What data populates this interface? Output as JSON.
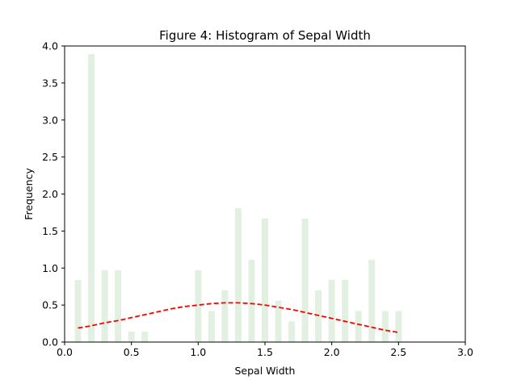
{
  "chart_data": {
    "type": "bar",
    "title": "Figure 4: Histogram of Sepal Width",
    "xlabel": "Sepal Width",
    "ylabel": "Frequency",
    "xlim": [
      0.0,
      3.0
    ],
    "ylim": [
      0.0,
      4.0
    ],
    "xticks": [
      "0.0",
      "0.5",
      "1.0",
      "1.5",
      "2.0",
      "2.5",
      "3.0"
    ],
    "yticks": [
      "0.0",
      "0.5",
      "1.0",
      "1.5",
      "2.0",
      "2.5",
      "3.0",
      "3.5",
      "4.0"
    ],
    "grid": false,
    "bar_width": 0.048,
    "colors": {
      "bars": "#e2f0e2",
      "curve": "#ff0000",
      "axes": "#000000"
    },
    "histogram": {
      "x": [
        0.1,
        0.2,
        0.3,
        0.4,
        0.5,
        0.6,
        1.0,
        1.1,
        1.2,
        1.3,
        1.4,
        1.5,
        1.6,
        1.7,
        1.8,
        1.9,
        2.0,
        2.1,
        2.2,
        2.3,
        2.4,
        2.5
      ],
      "values": [
        0.84,
        3.89,
        0.97,
        0.97,
        0.14,
        0.14,
        0.97,
        0.42,
        0.7,
        1.81,
        1.11,
        1.67,
        0.56,
        0.28,
        1.67,
        0.7,
        0.84,
        0.84,
        0.42,
        1.11,
        0.42,
        0.42
      ]
    },
    "curve": {
      "style": "dashed",
      "x": [
        0.1,
        0.2,
        0.3,
        0.4,
        0.5,
        0.6,
        0.7,
        0.8,
        0.9,
        1.0,
        1.1,
        1.2,
        1.3,
        1.4,
        1.5,
        1.6,
        1.7,
        1.8,
        1.9,
        2.0,
        2.1,
        2.2,
        2.3,
        2.4,
        2.5
      ],
      "y": [
        0.19,
        0.22,
        0.26,
        0.29,
        0.33,
        0.37,
        0.41,
        0.45,
        0.48,
        0.5,
        0.52,
        0.53,
        0.53,
        0.52,
        0.5,
        0.47,
        0.44,
        0.4,
        0.36,
        0.32,
        0.28,
        0.24,
        0.2,
        0.16,
        0.13
      ]
    }
  }
}
